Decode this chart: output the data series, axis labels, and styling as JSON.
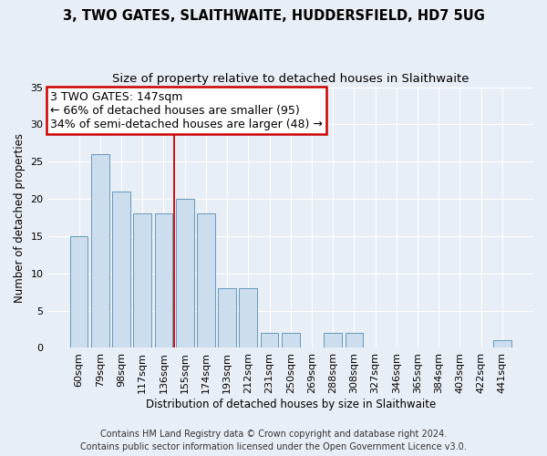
{
  "title": "3, TWO GATES, SLAITHWAITE, HUDDERSFIELD, HD7 5UG",
  "subtitle": "Size of property relative to detached houses in Slaithwaite",
  "xlabel": "Distribution of detached houses by size in Slaithwaite",
  "ylabel": "Number of detached properties",
  "categories": [
    "60sqm",
    "79sqm",
    "98sqm",
    "117sqm",
    "136sqm",
    "155sqm",
    "174sqm",
    "193sqm",
    "212sqm",
    "231sqm",
    "250sqm",
    "269sqm",
    "288sqm",
    "308sqm",
    "327sqm",
    "346sqm",
    "365sqm",
    "384sqm",
    "403sqm",
    "422sqm",
    "441sqm"
  ],
  "values": [
    15,
    26,
    21,
    18,
    18,
    20,
    18,
    8,
    8,
    2,
    2,
    0,
    2,
    2,
    0,
    0,
    0,
    0,
    0,
    0,
    1
  ],
  "bar_color": "#ccdded",
  "bar_edge_color": "#6699bb",
  "bar_edge_width": 0.7,
  "ylim": [
    0,
    35
  ],
  "yticks": [
    0,
    5,
    10,
    15,
    20,
    25,
    30,
    35
  ],
  "red_line_x": 4.48,
  "annotation_line1": "3 TWO GATES: 147sqm",
  "annotation_line2": "← 66% of detached houses are smaller (95)",
  "annotation_line3": "34% of semi-detached houses are larger (48) →",
  "annotation_box_color": "#ffffff",
  "annotation_box_edge": "#cc0000",
  "red_line_color": "#cc0000",
  "background_color": "#e8eef5",
  "plot_bg_color": "#e8eef5",
  "grid_color": "#ffffff",
  "footer": "Contains HM Land Registry data © Crown copyright and database right 2024.\nContains public sector information licensed under the Open Government Licence v3.0.",
  "title_fontsize": 10.5,
  "subtitle_fontsize": 9.5,
  "xlabel_fontsize": 8.5,
  "ylabel_fontsize": 8.5,
  "tick_fontsize": 8,
  "annotation_fontsize": 9,
  "footer_fontsize": 7
}
